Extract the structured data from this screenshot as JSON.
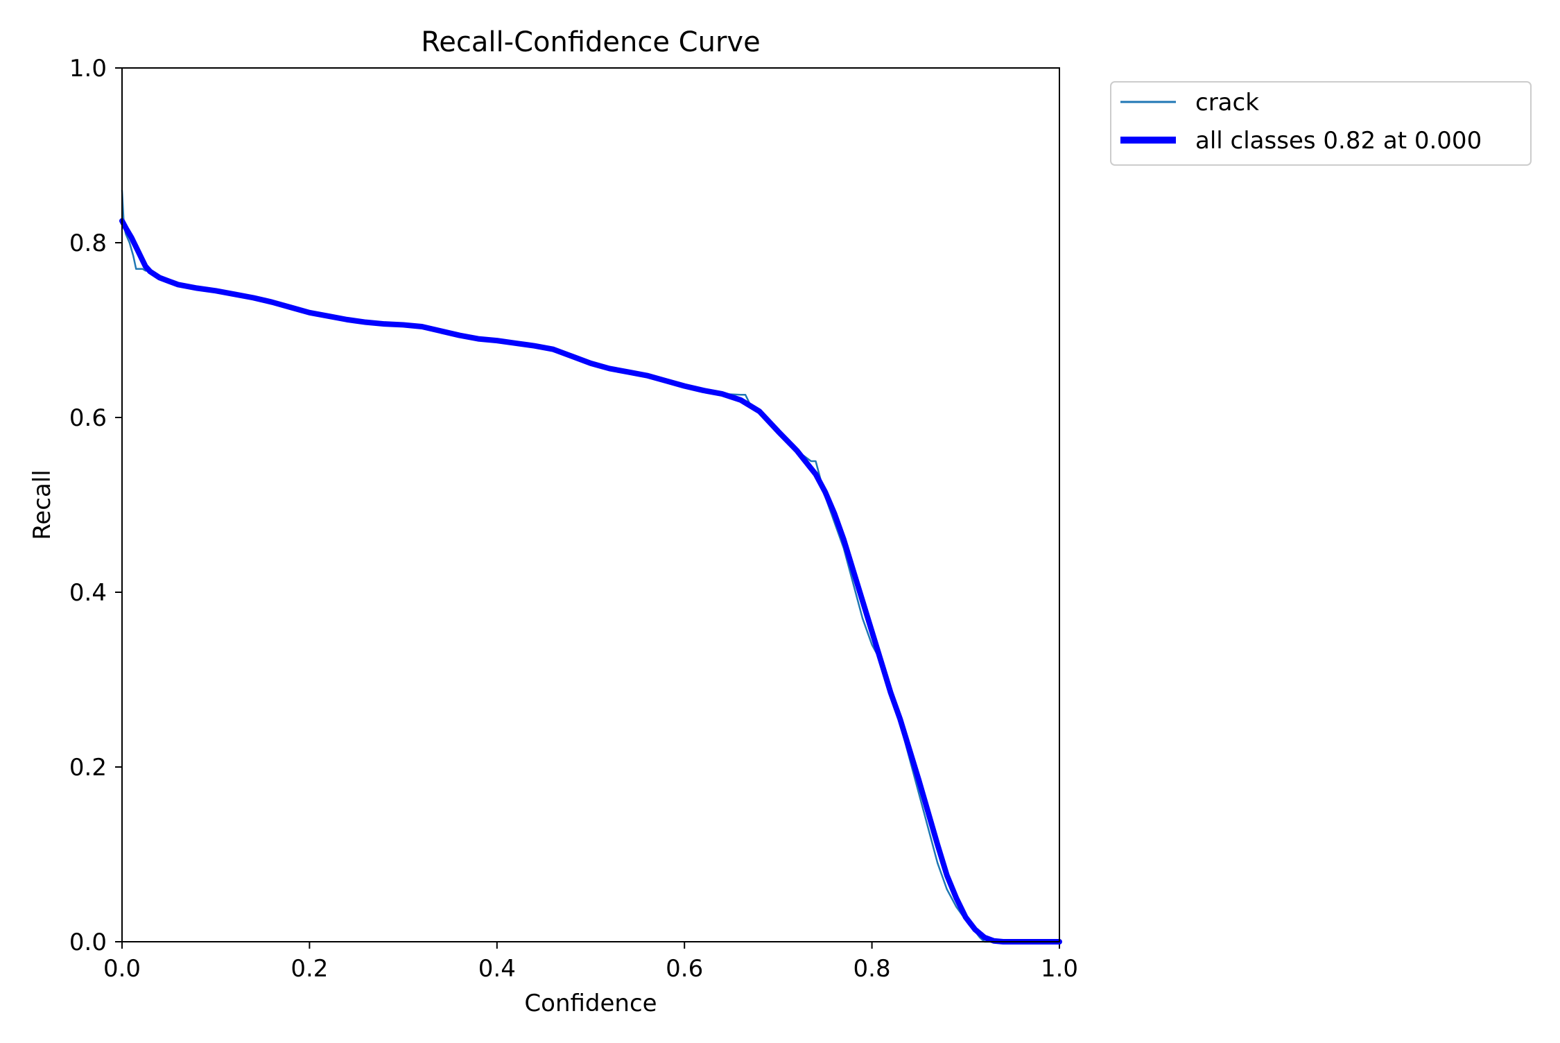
{
  "chart_data": {
    "type": "line",
    "title": "Recall-Confidence Curve",
    "xlabel": "Confidence",
    "ylabel": "Recall",
    "xlim": [
      0,
      1
    ],
    "ylim": [
      0,
      1
    ],
    "xticks": [
      0.0,
      0.2,
      0.4,
      0.6,
      0.8,
      1.0
    ],
    "yticks": [
      0.0,
      0.2,
      0.4,
      0.6,
      0.8,
      1.0
    ],
    "xtick_labels": [
      "0.0",
      "0.2",
      "0.4",
      "0.6",
      "0.8",
      "1.0"
    ],
    "ytick_labels": [
      "0.0",
      "0.2",
      "0.4",
      "0.6",
      "0.8",
      "1.0"
    ],
    "grid": false,
    "legend_position": "outside-top-right",
    "series": [
      {
        "name": "crack",
        "color": "#1f77b4",
        "x": [
          0.0,
          0.002,
          0.004,
          0.008,
          0.012,
          0.015,
          0.018,
          0.022,
          0.025,
          0.03,
          0.035,
          0.04,
          0.05,
          0.06,
          0.07,
          0.08,
          0.1,
          0.12,
          0.14,
          0.16,
          0.18,
          0.2,
          0.22,
          0.24,
          0.26,
          0.28,
          0.3,
          0.32,
          0.34,
          0.36,
          0.38,
          0.4,
          0.42,
          0.44,
          0.46,
          0.48,
          0.5,
          0.52,
          0.54,
          0.56,
          0.58,
          0.6,
          0.62,
          0.64,
          0.66,
          0.665,
          0.67,
          0.68,
          0.7,
          0.72,
          0.735,
          0.74,
          0.75,
          0.76,
          0.77,
          0.78,
          0.79,
          0.8,
          0.805,
          0.81,
          0.815,
          0.82,
          0.83,
          0.84,
          0.85,
          0.86,
          0.87,
          0.88,
          0.89,
          0.9,
          0.905,
          0.91,
          0.915,
          0.92,
          0.925,
          0.93,
          0.935,
          0.94,
          0.95,
          0.96,
          0.97,
          0.98,
          1.0
        ],
        "y": [
          0.86,
          0.82,
          0.81,
          0.8,
          0.785,
          0.77,
          0.77,
          0.77,
          0.768,
          0.768,
          0.762,
          0.758,
          0.755,
          0.752,
          0.75,
          0.748,
          0.745,
          0.74,
          0.735,
          0.733,
          0.725,
          0.72,
          0.716,
          0.712,
          0.709,
          0.707,
          0.706,
          0.704,
          0.699,
          0.694,
          0.69,
          0.688,
          0.685,
          0.682,
          0.678,
          0.67,
          0.662,
          0.655,
          0.652,
          0.648,
          0.642,
          0.635,
          0.63,
          0.627,
          0.626,
          0.626,
          0.615,
          0.608,
          0.585,
          0.562,
          0.55,
          0.55,
          0.51,
          0.48,
          0.45,
          0.41,
          0.37,
          0.34,
          0.33,
          0.32,
          0.3,
          0.28,
          0.25,
          0.21,
          0.17,
          0.13,
          0.09,
          0.06,
          0.04,
          0.025,
          0.018,
          0.012,
          0.005,
          0.0,
          0.0,
          0.0,
          0.0,
          0.0,
          0.0,
          0.0,
          0.0,
          0.0,
          0.0
        ]
      },
      {
        "name": "all classes 0.82 at 0.000",
        "color": "#0000ff",
        "x": [
          0.0,
          0.005,
          0.01,
          0.015,
          0.02,
          0.025,
          0.03,
          0.04,
          0.05,
          0.06,
          0.08,
          0.1,
          0.12,
          0.14,
          0.16,
          0.18,
          0.2,
          0.22,
          0.24,
          0.26,
          0.28,
          0.3,
          0.32,
          0.34,
          0.36,
          0.38,
          0.4,
          0.42,
          0.44,
          0.46,
          0.48,
          0.5,
          0.52,
          0.54,
          0.56,
          0.58,
          0.6,
          0.62,
          0.64,
          0.66,
          0.68,
          0.7,
          0.72,
          0.74,
          0.75,
          0.76,
          0.77,
          0.78,
          0.79,
          0.8,
          0.81,
          0.82,
          0.83,
          0.84,
          0.85,
          0.86,
          0.87,
          0.88,
          0.89,
          0.9,
          0.91,
          0.92,
          0.93,
          0.94,
          0.95,
          0.96,
          0.97,
          0.98,
          0.99,
          1.0
        ],
        "y": [
          0.825,
          0.815,
          0.806,
          0.795,
          0.784,
          0.773,
          0.767,
          0.76,
          0.756,
          0.752,
          0.748,
          0.745,
          0.741,
          0.737,
          0.732,
          0.726,
          0.72,
          0.716,
          0.712,
          0.709,
          0.707,
          0.706,
          0.704,
          0.699,
          0.694,
          0.69,
          0.688,
          0.685,
          0.682,
          0.678,
          0.67,
          0.662,
          0.656,
          0.652,
          0.648,
          0.642,
          0.636,
          0.631,
          0.627,
          0.62,
          0.607,
          0.584,
          0.562,
          0.535,
          0.515,
          0.49,
          0.46,
          0.425,
          0.39,
          0.355,
          0.32,
          0.285,
          0.255,
          0.22,
          0.185,
          0.148,
          0.111,
          0.076,
          0.05,
          0.028,
          0.014,
          0.005,
          0.001,
          0.0,
          0.0,
          0.0,
          0.0,
          0.0,
          0.0,
          0.0
        ]
      }
    ]
  }
}
